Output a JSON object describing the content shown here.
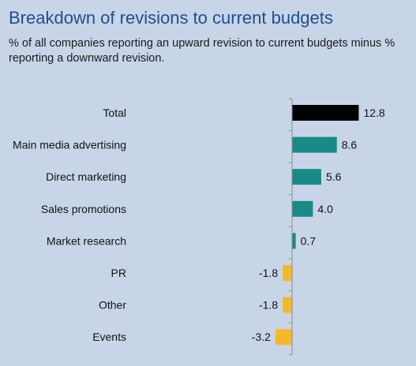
{
  "title": "Breakdown of revisions to current budgets",
  "subtitle": "% of all companies reporting an upward revision to current budgets minus % reporting a downward revision.",
  "colors": {
    "background": "#c8d5e9",
    "title": "#1f4e8c",
    "total": "#000000",
    "positive": "#1a8a86",
    "negative": "#f6b82a",
    "axis": "#8c8c8c"
  },
  "chart_data": {
    "type": "bar",
    "orientation": "horizontal",
    "categories": [
      "Total",
      "Main media advertising",
      "Direct marketing",
      "Sales promotions",
      "Market research",
      "PR",
      "Other",
      "Events"
    ],
    "values": [
      12.8,
      8.6,
      5.6,
      4.0,
      0.7,
      -1.8,
      -1.8,
      -3.2
    ],
    "value_labels": [
      "12.8",
      "8.6",
      "5.6",
      "4.0",
      "0.7",
      "-1.8",
      "-1.8",
      "-3.2"
    ],
    "xlim": [
      -3.2,
      12.8
    ],
    "grid": false,
    "legend": "none"
  }
}
